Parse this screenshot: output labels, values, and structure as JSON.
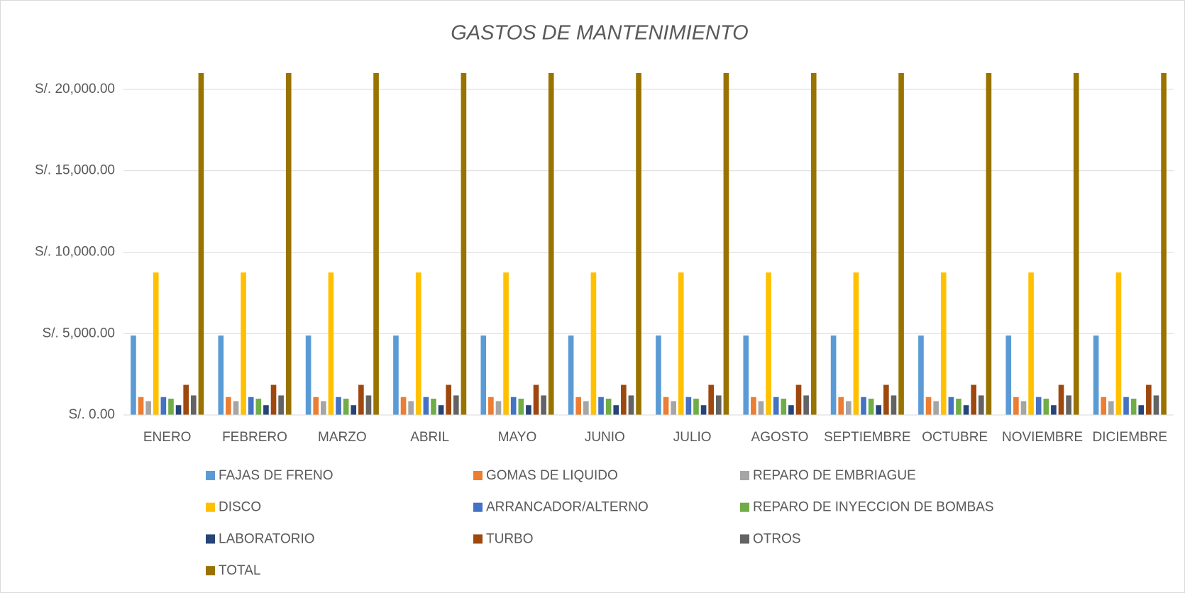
{
  "chart_data": {
    "type": "bar",
    "title": "GASTOS DE MANTENIMIENTO",
    "categories": [
      "ENERO",
      "FEBRERO",
      "MARZO",
      "ABRIL",
      "MAYO",
      "JUNIO",
      "JULIO",
      "AGOSTO",
      "SEPTIEMBRE",
      "OCTUBRE",
      "NOVIEMBRE",
      "DICIEMBRE"
    ],
    "series": [
      {
        "name": "FAJAS DE FRENO",
        "color": "#5b9bd5",
        "values": [
          4880,
          4880,
          4880,
          4880,
          4880,
          4880,
          4880,
          4880,
          4880,
          4880,
          4880,
          4880
        ]
      },
      {
        "name": "GOMAS DE LIQUIDO",
        "color": "#ed7d31",
        "values": [
          1100,
          1100,
          1100,
          1100,
          1100,
          1100,
          1100,
          1100,
          1100,
          1100,
          1100,
          1100
        ]
      },
      {
        "name": "REPARO DE EMBRIAGUE",
        "color": "#a5a5a5",
        "values": [
          850,
          850,
          850,
          850,
          850,
          850,
          850,
          850,
          850,
          850,
          850,
          850
        ]
      },
      {
        "name": "DISCO",
        "color": "#ffc000",
        "values": [
          8750,
          8750,
          8750,
          8750,
          8750,
          8750,
          8750,
          8750,
          8750,
          8750,
          8750,
          8750
        ]
      },
      {
        "name": "ARRANCADOR/ALTERNO",
        "color": "#4472c4",
        "values": [
          1100,
          1100,
          1100,
          1100,
          1100,
          1100,
          1100,
          1100,
          1100,
          1100,
          1100,
          1100
        ]
      },
      {
        "name": "REPARO DE INYECCION DE BOMBAS",
        "color": "#70ad47",
        "values": [
          1000,
          1000,
          1000,
          1000,
          1000,
          1000,
          1000,
          1000,
          1000,
          1000,
          1000,
          1000
        ]
      },
      {
        "name": "LABORATORIO",
        "color": "#264478",
        "values": [
          600,
          600,
          600,
          600,
          600,
          600,
          600,
          600,
          600,
          600,
          600,
          600
        ]
      },
      {
        "name": "TURBO",
        "color": "#9e480e",
        "values": [
          1850,
          1850,
          1850,
          1850,
          1850,
          1850,
          1850,
          1850,
          1850,
          1850,
          1850,
          1850
        ]
      },
      {
        "name": "OTROS",
        "color": "#636363",
        "values": [
          1200,
          1200,
          1200,
          1200,
          1200,
          1200,
          1200,
          1200,
          1200,
          1200,
          1200,
          1200
        ]
      },
      {
        "name": "TOTAL",
        "color": "#997300",
        "values": [
          21330,
          21330,
          21330,
          21330,
          21330,
          21330,
          21330,
          21330,
          21330,
          21330,
          21330,
          21330
        ]
      }
    ],
    "ylim": [
      0,
      21000
    ],
    "yticks": [
      {
        "value": 0,
        "label": "S/. 0.00"
      },
      {
        "value": 5000,
        "label": "S/. 5,000.00"
      },
      {
        "value": 10000,
        "label": "S/. 10,000.00"
      },
      {
        "value": 15000,
        "label": "S/. 15,000.00"
      },
      {
        "value": 20000,
        "label": "S/. 20,000.00"
      }
    ],
    "grid": true,
    "legend": "bottom"
  }
}
